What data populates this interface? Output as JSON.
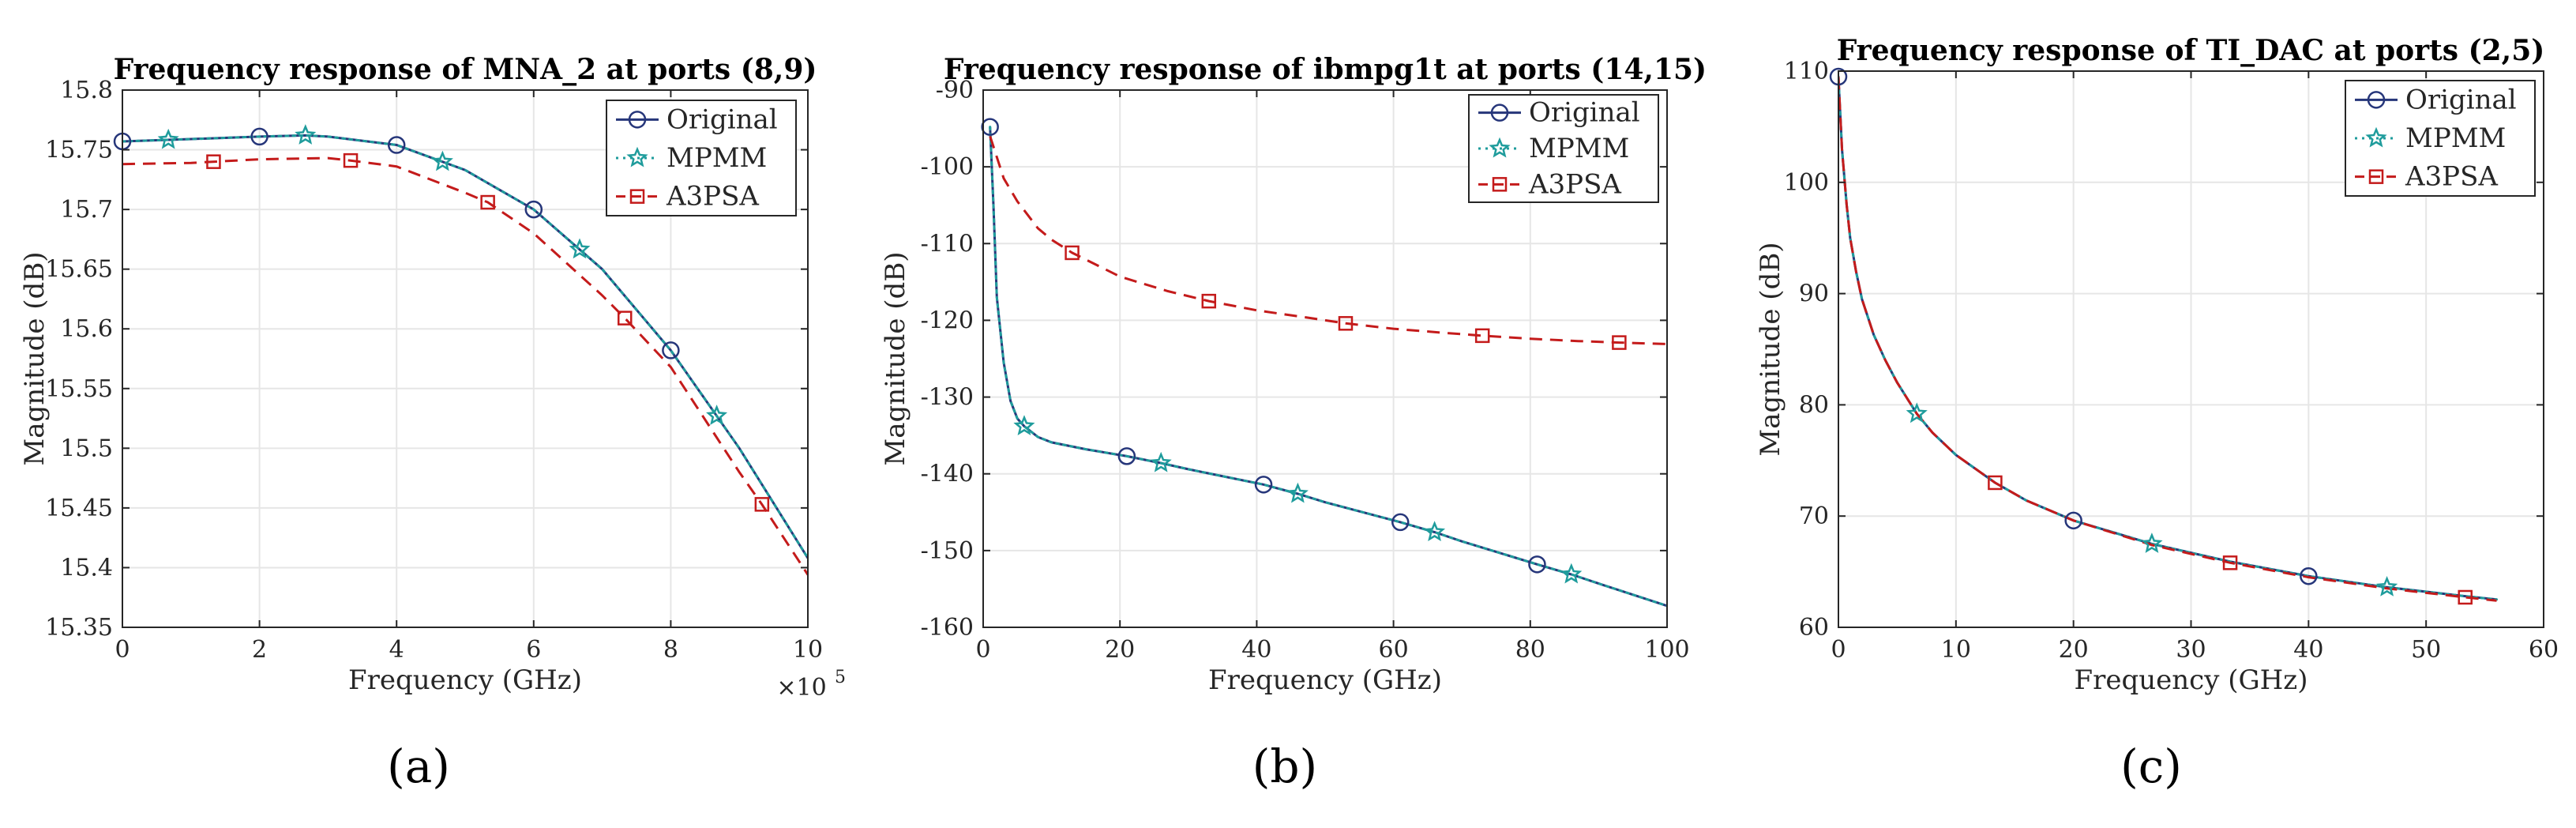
{
  "colors": {
    "original": "#26367a",
    "mpmm": "#1f9c9c",
    "a3psa": "#c41b1b"
  },
  "chart_data": [
    {
      "type": "line",
      "caption": "(a)",
      "title": "Frequency response of MNA_2 at ports (8,9)",
      "xlabel": "Frequency (GHz)",
      "ylabel": "Magnitude (dB)",
      "xlim": [
        0,
        10
      ],
      "ylim": [
        15.35,
        15.8
      ],
      "xticks": [
        0,
        2,
        4,
        6,
        8,
        10
      ],
      "xtick_labels": [
        "0",
        "2",
        "4",
        "6",
        "8",
        "10"
      ],
      "yticks": [
        15.35,
        15.4,
        15.45,
        15.5,
        15.55,
        15.6,
        15.65,
        15.7,
        15.75,
        15.8
      ],
      "ytick_labels": [
        "15.35",
        "15.4",
        "15.45",
        "15.5",
        "15.55",
        "15.6",
        "15.65",
        "15.7",
        "15.75",
        "15.8"
      ],
      "x_multiplier": "×10",
      "x_multiplier_exp": "5",
      "legend": [
        "Original",
        "MPMM",
        "A3PSA"
      ],
      "legend_position": "top-right",
      "grid": true,
      "series": [
        {
          "name": "Original",
          "style": "solid",
          "marker": "circle",
          "x": [
            0,
            1,
            2,
            2.67,
            3,
            4,
            5,
            6,
            7,
            8,
            9,
            10
          ],
          "y": [
            15.757,
            15.759,
            15.761,
            15.762,
            15.761,
            15.754,
            15.733,
            15.7,
            15.65,
            15.582,
            15.5,
            15.408
          ],
          "marker_x": [
            0,
            2,
            4,
            6,
            8
          ]
        },
        {
          "name": "MPMM",
          "style": "dotted",
          "marker": "star",
          "x": [
            0,
            1,
            2,
            2.67,
            3,
            4,
            5,
            6,
            7,
            8,
            9,
            10
          ],
          "y": [
            15.757,
            15.759,
            15.761,
            15.762,
            15.761,
            15.754,
            15.733,
            15.7,
            15.65,
            15.582,
            15.5,
            15.408
          ],
          "marker_x": [
            0.67,
            2.67,
            4.67,
            6.67,
            8.67
          ]
        },
        {
          "name": "A3PSA",
          "style": "dashed",
          "marker": "square",
          "x": [
            0,
            1,
            2,
            3,
            3.33,
            4,
            5,
            5.33,
            6,
            7,
            7.33,
            8,
            9,
            9.33,
            10
          ],
          "y": [
            15.738,
            15.739,
            15.742,
            15.743,
            15.741,
            15.736,
            15.714,
            15.706,
            15.68,
            15.628,
            15.609,
            15.568,
            15.48,
            15.453,
            15.394
          ],
          "marker_x": [
            1.33,
            3.33,
            5.33,
            7.33,
            9.33
          ]
        }
      ]
    },
    {
      "type": "line",
      "caption": "(b)",
      "title": "Frequency response of ibmpg1t at ports (14,15)",
      "xlabel": "Frequency (GHz)",
      "ylabel": "Magnitude (dB)",
      "xlim": [
        0,
        100
      ],
      "ylim": [
        -160,
        -90
      ],
      "xticks": [
        0,
        20,
        40,
        60,
        80,
        100
      ],
      "xtick_labels": [
        "0",
        "20",
        "40",
        "60",
        "80",
        "100"
      ],
      "yticks": [
        -160,
        -150,
        -140,
        -130,
        -120,
        -110,
        -100,
        -90
      ],
      "ytick_labels": [
        "-160",
        "-150",
        "-140",
        "-130",
        "-120",
        "-110",
        "-100",
        "-90"
      ],
      "legend": [
        "Original",
        "MPMM",
        "A3PSA"
      ],
      "legend_position": "top-right",
      "grid": true,
      "series": [
        {
          "name": "Original",
          "style": "solid",
          "marker": "circle",
          "x": [
            1,
            1.5,
            2,
            3,
            4,
            5,
            6,
            8,
            10,
            15,
            21,
            26,
            30,
            41,
            46,
            50,
            61,
            66,
            70,
            81,
            86,
            90,
            100
          ],
          "y": [
            -94.8,
            -105,
            -117,
            -125.5,
            -130.5,
            -132.8,
            -133.8,
            -135.2,
            -135.9,
            -136.8,
            -137.7,
            -138.6,
            -139.4,
            -141.4,
            -142.6,
            -143.7,
            -146.3,
            -147.6,
            -148.8,
            -151.8,
            -153.1,
            -154.3,
            -157.2
          ],
          "marker_x": [
            1,
            21,
            41,
            61,
            81
          ]
        },
        {
          "name": "MPMM",
          "style": "dotted",
          "marker": "star",
          "x": [
            1,
            1.5,
            2,
            3,
            4,
            5,
            6,
            8,
            10,
            15,
            21,
            26,
            30,
            41,
            46,
            50,
            61,
            66,
            70,
            81,
            86,
            90,
            100
          ],
          "y": [
            -94.8,
            -105,
            -117,
            -125.5,
            -130.5,
            -132.8,
            -133.8,
            -135.2,
            -135.9,
            -136.8,
            -137.7,
            -138.6,
            -139.4,
            -141.4,
            -142.6,
            -143.7,
            -146.3,
            -147.6,
            -148.8,
            -151.8,
            -153.1,
            -154.3,
            -157.2
          ],
          "marker_x": [
            6,
            26,
            46,
            66,
            86
          ]
        },
        {
          "name": "A3PSA",
          "style": "dashed",
          "marker": "square",
          "x": [
            1,
            3,
            5,
            8,
            10,
            13,
            20,
            27,
            33,
            40,
            47,
            53,
            60,
            67,
            73,
            80,
            87,
            93,
            100
          ],
          "y": [
            -96,
            -101.5,
            -104.5,
            -108,
            -109.5,
            -111.2,
            -114.3,
            -116.2,
            -117.5,
            -118.7,
            -119.6,
            -120.4,
            -121.1,
            -121.6,
            -122,
            -122.4,
            -122.7,
            -122.9,
            -123.1
          ],
          "marker_x": [
            13,
            33,
            53,
            73,
            93
          ]
        }
      ]
    },
    {
      "type": "line",
      "caption": "(c)",
      "title": "Frequency response of TI_DAC at ports (2,5)",
      "xlabel": "Frequency (GHz)",
      "ylabel": "Magnitude (dB)",
      "xlim": [
        0,
        60
      ],
      "ylim": [
        60,
        110
      ],
      "xticks": [
        0,
        10,
        20,
        30,
        40,
        50,
        60
      ],
      "xtick_labels": [
        "0",
        "10",
        "20",
        "30",
        "40",
        "50",
        "60"
      ],
      "yticks": [
        60,
        70,
        80,
        90,
        100,
        110
      ],
      "ytick_labels": [
        "60",
        "70",
        "80",
        "90",
        "100",
        "110"
      ],
      "legend": [
        "Original",
        "MPMM",
        "A3PSA"
      ],
      "legend_position": "top-right",
      "grid": true,
      "series": [
        {
          "name": "Original",
          "style": "solid",
          "marker": "circle",
          "x": [
            0,
            0.3,
            0.7,
            1,
            1.5,
            2,
            3,
            4,
            5,
            6.67,
            8,
            10,
            13.33,
            16,
            20,
            26.67,
            33.33,
            40,
            46.67,
            53.33,
            56
          ],
          "y": [
            109.5,
            103,
            98,
            95,
            92,
            89.5,
            86.3,
            84,
            82,
            79.2,
            77.5,
            75.5,
            73,
            71.4,
            69.6,
            67.5,
            65.9,
            64.6,
            63.6,
            62.8,
            62.5
          ],
          "marker_x": [
            0,
            20,
            40
          ]
        },
        {
          "name": "MPMM",
          "style": "dotted",
          "marker": "star",
          "x": [
            0,
            0.3,
            0.7,
            1,
            1.5,
            2,
            3,
            4,
            5,
            6.67,
            8,
            10,
            13.33,
            16,
            20,
            26.67,
            33.33,
            40,
            46.67,
            53.33,
            56
          ],
          "y": [
            109.5,
            103,
            98,
            95,
            92,
            89.5,
            86.3,
            84,
            82,
            79.2,
            77.5,
            75.5,
            73,
            71.4,
            69.6,
            67.5,
            65.9,
            64.6,
            63.6,
            62.8,
            62.5
          ],
          "marker_x": [
            6.67,
            26.67,
            46.67
          ]
        },
        {
          "name": "A3PSA",
          "style": "dashed",
          "marker": "square",
          "x": [
            0,
            0.3,
            0.7,
            1,
            1.5,
            2,
            3,
            4,
            5,
            6.67,
            8,
            10,
            13.33,
            16,
            20,
            26.67,
            33.33,
            40,
            46.67,
            53.33,
            56
          ],
          "y": [
            109.5,
            103,
            98,
            95,
            92,
            89.5,
            86.3,
            84,
            82,
            79.2,
            77.5,
            75.5,
            73,
            71.4,
            69.6,
            67.4,
            65.8,
            64.5,
            63.5,
            62.7,
            62.4
          ],
          "marker_x": [
            13.33,
            33.33,
            53.33
          ]
        }
      ]
    }
  ]
}
